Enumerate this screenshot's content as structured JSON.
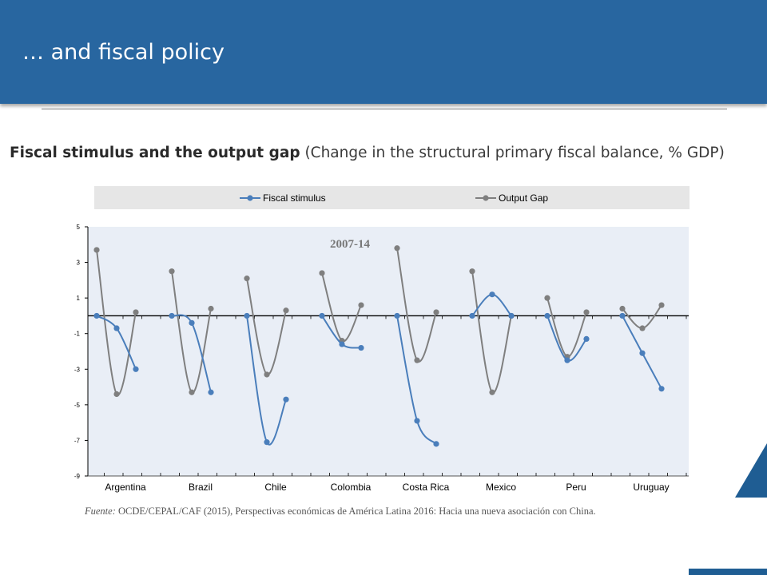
{
  "header": {
    "title": "… and fiscal policy"
  },
  "subtitle": {
    "bold": "Fiscal stimulus and the output gap",
    "rest": " (Change in the structural primary  fiscal balance, % GDP)"
  },
  "source": {
    "label": "Fuente:",
    "text": " OCDE/CEPAL/CAF (2015), Perspectivas económicas de América Latina 2016: Hacia una nueva asociación con China."
  },
  "chart_data": {
    "type": "line",
    "annotation": "2007-14",
    "categories": [
      "Argentina",
      "Brazil",
      "Chile",
      "Colombia",
      "Costa Rica",
      "Mexico",
      "Peru",
      "Uruguay"
    ],
    "ylim": [
      -9,
      5
    ],
    "yticks": [
      "5",
      "3",
      "1",
      "-1",
      "-3",
      "-5",
      "-7",
      "-9"
    ],
    "legend_position": "top",
    "grid": false,
    "series": [
      {
        "name": "Fiscal stimulus",
        "color": "#4a7ebb",
        "values": [
          [
            0,
            -0.7,
            -3.0
          ],
          [
            0,
            -0.4,
            -4.3
          ],
          [
            0,
            -7.1,
            -4.7
          ],
          [
            0,
            -1.6,
            -1.8
          ],
          [
            0,
            -5.9,
            -7.2
          ],
          [
            0,
            1.2,
            0
          ],
          [
            0,
            -2.5,
            -1.3
          ],
          [
            0,
            -2.1,
            -4.1
          ]
        ]
      },
      {
        "name": "Output Gap",
        "color": "#7f7f7f",
        "values": [
          [
            3.7,
            -4.4,
            0.2
          ],
          [
            2.5,
            -4.3,
            0.4
          ],
          [
            2.1,
            -3.3,
            0.3
          ],
          [
            2.4,
            -1.4,
            0.6
          ],
          [
            3.8,
            -2.5,
            0.2
          ],
          [
            2.5,
            -4.3,
            0
          ],
          [
            1.0,
            -2.3,
            0.2
          ],
          [
            0.4,
            -0.7,
            0.6
          ]
        ]
      }
    ]
  }
}
